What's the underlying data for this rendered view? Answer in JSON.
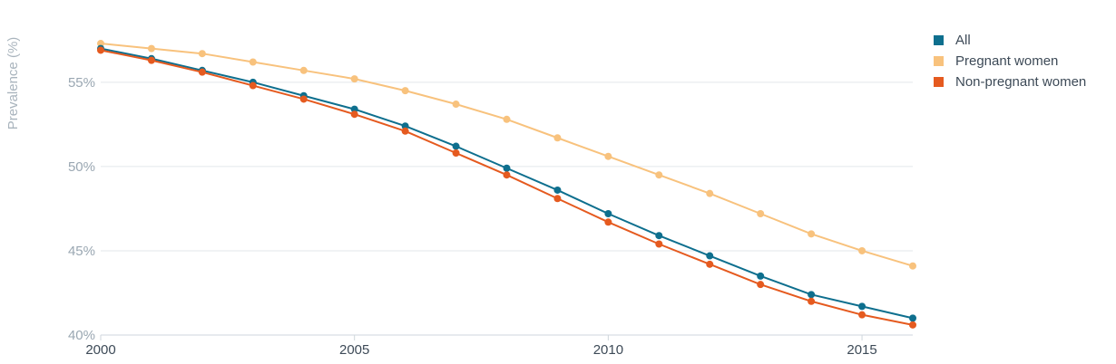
{
  "chart_data": {
    "type": "line",
    "ylabel": "Prevalence (%)",
    "xlabel": "",
    "x": [
      2000,
      2001,
      2002,
      2003,
      2004,
      2005,
      2006,
      2007,
      2008,
      2009,
      2010,
      2011,
      2012,
      2013,
      2014,
      2015,
      2016
    ],
    "xlim": [
      2000,
      2016
    ],
    "ylim": [
      40,
      58
    ],
    "xticks": [
      2000,
      2005,
      2010,
      2015
    ],
    "xtick_labels": [
      "2000",
      "2005",
      "2010",
      "2015"
    ],
    "yticks": [
      40,
      45,
      50,
      55
    ],
    "ytick_labels": [
      "40%",
      "45%",
      "50%",
      "55%"
    ],
    "grid": true,
    "legend": "top-right",
    "series": [
      {
        "name": "All",
        "color": "#0e6f8e",
        "values": [
          57.0,
          56.4,
          55.7,
          55.0,
          54.2,
          53.4,
          52.4,
          51.2,
          49.9,
          48.6,
          47.2,
          45.9,
          44.7,
          43.5,
          42.4,
          41.7,
          41.0
        ]
      },
      {
        "name": "Pregnant women",
        "color": "#f8c27d",
        "values": [
          57.3,
          57.0,
          56.7,
          56.2,
          55.7,
          55.2,
          54.5,
          53.7,
          52.8,
          51.7,
          50.6,
          49.5,
          48.4,
          47.2,
          46.0,
          45.0,
          44.1
        ]
      },
      {
        "name": "Non-pregnant women",
        "color": "#e55a1f",
        "values": [
          56.9,
          56.3,
          55.6,
          54.8,
          54.0,
          53.1,
          52.1,
          50.8,
          49.5,
          48.1,
          46.7,
          45.4,
          44.2,
          43.0,
          42.0,
          41.2,
          40.6
        ]
      }
    ]
  }
}
